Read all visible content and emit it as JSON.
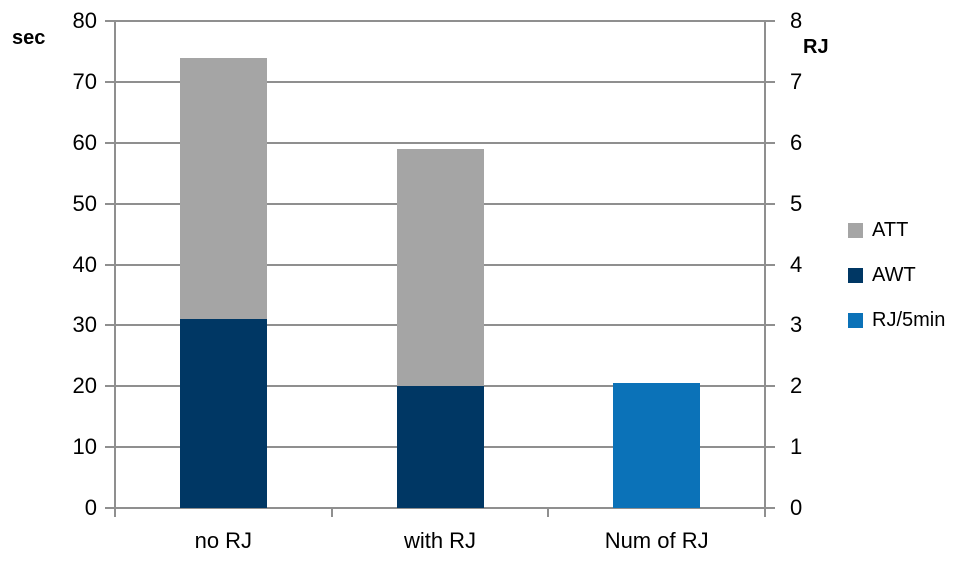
{
  "chart_data": {
    "type": "bar",
    "subtype": "stacked-column-dual-axis",
    "title": "",
    "categories": [
      "no RJ",
      "with RJ",
      "Num of RJ"
    ],
    "series": [
      {
        "name": "ATT",
        "axis": "left",
        "color": "#A5A5A5",
        "values": [
          43,
          39,
          null
        ]
      },
      {
        "name": "AWT",
        "axis": "left",
        "color": "#003764",
        "values": [
          31,
          20,
          null
        ]
      },
      {
        "name": "RJ/5min",
        "axis": "right",
        "color": "#0B72B8",
        "values": [
          null,
          null,
          2.05
        ]
      }
    ],
    "stack_order": [
      "AWT",
      "ATT",
      "RJ/5min"
    ],
    "left_axis": {
      "label": "sec",
      "min": 0,
      "max": 80,
      "step": 10,
      "ticks": [
        0,
        10,
        20,
        30,
        40,
        50,
        60,
        70,
        80
      ]
    },
    "right_axis": {
      "label": "RJ",
      "min": 0,
      "max": 8,
      "step": 1,
      "ticks": [
        0,
        1,
        2,
        3,
        4,
        5,
        6,
        7,
        8
      ]
    },
    "legend": {
      "position": "right",
      "entries": [
        "ATT",
        "AWT",
        "RJ/5min"
      ]
    },
    "grid": true,
    "colors": {
      "gridline": "#8F8F8F",
      "text": "#000000"
    }
  }
}
